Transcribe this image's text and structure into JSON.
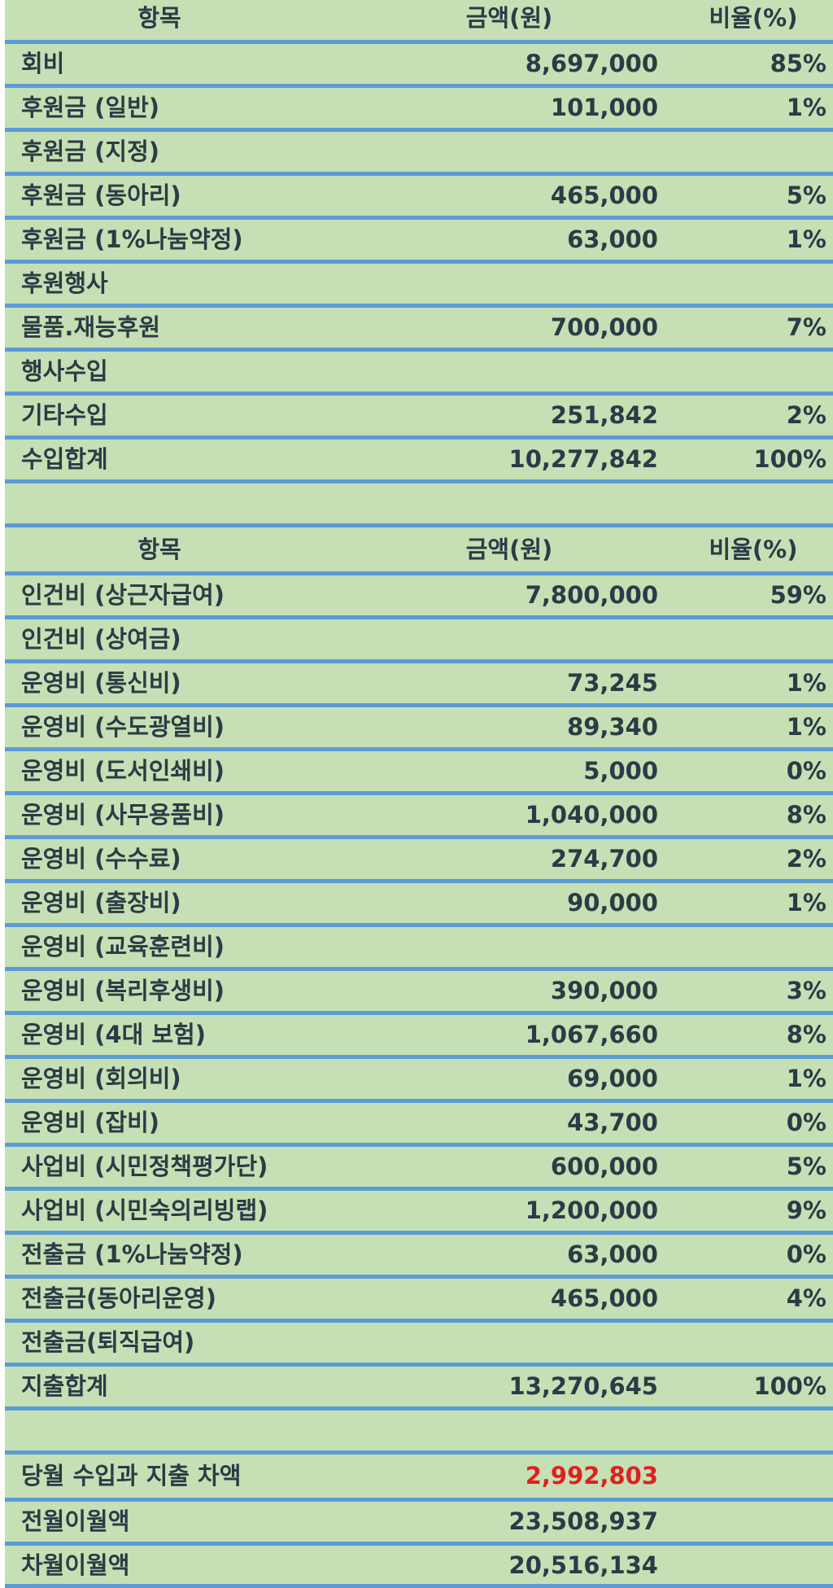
{
  "income": {
    "header": {
      "item": "항목",
      "amount": "금액(원)",
      "ratio": "비율(%)"
    },
    "rows": [
      {
        "item": "회비",
        "amount": "8,697,000",
        "ratio": "85%"
      },
      {
        "item": "후원금 (일반)",
        "amount": "101,000",
        "ratio": "1%"
      },
      {
        "item": "후원금 (지정)",
        "amount": "",
        "ratio": ""
      },
      {
        "item": "후원금 (동아리)",
        "amount": "465,000",
        "ratio": "5%"
      },
      {
        "item": "후원금 (1%나눔약정)",
        "amount": "63,000",
        "ratio": "1%"
      },
      {
        "item": "후원행사",
        "amount": "",
        "ratio": ""
      },
      {
        "item": "물품.재능후원",
        "amount": "700,000",
        "ratio": "7%"
      },
      {
        "item": "행사수입",
        "amount": "",
        "ratio": ""
      },
      {
        "item": "기타수입",
        "amount": "251,842",
        "ratio": "2%"
      },
      {
        "item": "수입합계",
        "amount": "10,277,842",
        "ratio": "100%"
      }
    ]
  },
  "expense": {
    "header": {
      "item": "항목",
      "amount": "금액(원)",
      "ratio": "비율(%)"
    },
    "rows": [
      {
        "item": "인건비 (상근자급여)",
        "amount": "7,800,000",
        "ratio": "59%"
      },
      {
        "item": "인건비 (상여금)",
        "amount": "",
        "ratio": ""
      },
      {
        "item": "운영비 (통신비)",
        "amount": "73,245",
        "ratio": "1%"
      },
      {
        "item": "운영비 (수도광열비)",
        "amount": "89,340",
        "ratio": "1%"
      },
      {
        "item": "운영비 (도서인쇄비)",
        "amount": "5,000",
        "ratio": "0%"
      },
      {
        "item": "운영비 (사무용품비)",
        "amount": "1,040,000",
        "ratio": "8%"
      },
      {
        "item": "운영비 (수수료)",
        "amount": "274,700",
        "ratio": "2%"
      },
      {
        "item": "운영비 (출장비)",
        "amount": "90,000",
        "ratio": "1%"
      },
      {
        "item": "운영비 (교육훈련비)",
        "amount": "",
        "ratio": ""
      },
      {
        "item": "운영비 (복리후생비)",
        "amount": "390,000",
        "ratio": "3%"
      },
      {
        "item": "운영비 (4대 보험)",
        "amount": "1,067,660",
        "ratio": "8%"
      },
      {
        "item": "운영비 (회의비)",
        "amount": "69,000",
        "ratio": "1%"
      },
      {
        "item": "운영비 (잡비)",
        "amount": "43,700",
        "ratio": "0%"
      },
      {
        "item": "사업비 (시민정책평가단)",
        "amount": "600,000",
        "ratio": "5%"
      },
      {
        "item": "사업비 (시민숙의리빙랩)",
        "amount": "1,200,000",
        "ratio": "9%"
      },
      {
        "item": "전출금 (1%나눔약정)",
        "amount": "63,000",
        "ratio": "0%"
      },
      {
        "item": "전출금(동아리운영)",
        "amount": "465,000",
        "ratio": "4%"
      },
      {
        "item": "전출금(퇴직급여)",
        "amount": "",
        "ratio": ""
      },
      {
        "item": "지출합계",
        "amount": "13,270,645",
        "ratio": "100%"
      }
    ]
  },
  "summary": {
    "rows": [
      {
        "item": "당월 수입과 지출 차액",
        "amount": "2,992,803",
        "ratio": ""
      },
      {
        "item": "전월이월액",
        "amount": "23,508,937",
        "ratio": ""
      },
      {
        "item": "차월이월액",
        "amount": "20,516,134",
        "ratio": ""
      }
    ]
  },
  "colors": {
    "background": "#c5e0b4",
    "rule": "#5b9bd5",
    "text": "#2e3a46",
    "highlight": "#e02020"
  }
}
